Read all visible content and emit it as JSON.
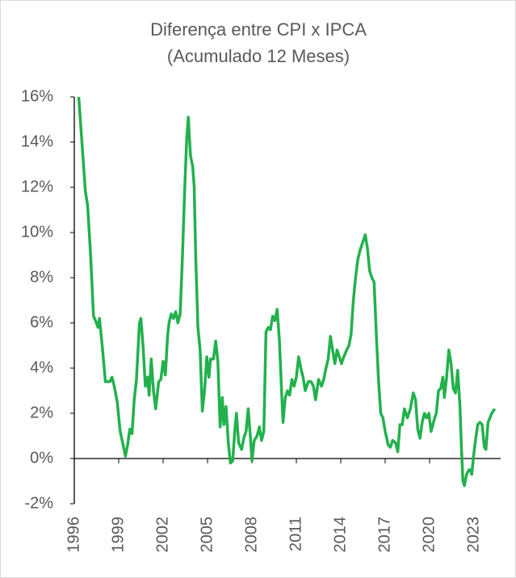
{
  "chart_data": {
    "type": "line",
    "title": "Diferença entre CPI x IPCA",
    "subtitle": "(Acumulado 12 Meses)",
    "color": "#22b14c",
    "x": [
      1996.3,
      1996.6,
      1996.75,
      1996.9,
      1997.1,
      1997.3,
      1997.5,
      1997.6,
      1997.7,
      1997.9,
      1998.1,
      1998.4,
      1998.55,
      1998.7,
      1998.9,
      1999.1,
      1999.3,
      1999.45,
      1999.6,
      1999.75,
      1999.9,
      2000.05,
      2000.2,
      2000.4,
      2000.5,
      2000.65,
      2000.8,
      2000.95,
      2001.05,
      2001.2,
      2001.35,
      2001.5,
      2001.7,
      2001.85,
      2002.0,
      2002.15,
      2002.3,
      2002.4,
      2002.55,
      2002.7,
      2002.85,
      2003.0,
      2003.15,
      2003.3,
      2003.45,
      2003.6,
      2003.7,
      2003.85,
      2004.0,
      2004.1,
      2004.2,
      2004.35,
      2004.5,
      2004.65,
      2004.8,
      2004.95,
      2005.1,
      2005.2,
      2005.4,
      2005.55,
      2005.7,
      2005.85,
      2006.0,
      2006.1,
      2006.25,
      2006.4,
      2006.55,
      2006.7,
      2006.85,
      2006.95,
      2007.1,
      2007.3,
      2007.45,
      2007.6,
      2007.75,
      2007.9,
      2008.0,
      2008.15,
      2008.35,
      2008.5,
      2008.65,
      2008.8,
      2008.95,
      2009.1,
      2009.25,
      2009.4,
      2009.55,
      2009.7,
      2009.85,
      2010.0,
      2010.1,
      2010.25,
      2010.4,
      2010.55,
      2010.7,
      2010.85,
      2011.0,
      2011.15,
      2011.3,
      2011.45,
      2011.6,
      2011.8,
      2012.0,
      2012.15,
      2012.3,
      2012.5,
      2012.7,
      2012.85,
      2013.0,
      2013.15,
      2013.3,
      2013.45,
      2013.6,
      2013.75,
      2013.9,
      2014.05,
      2014.2,
      2014.4,
      2014.55,
      2014.7,
      2014.85,
      2015.0,
      2015.15,
      2015.3,
      2015.5,
      2015.65,
      2015.8,
      2015.95,
      2016.1,
      2016.25,
      2016.4,
      2016.55,
      2016.7,
      2016.85,
      2017.0,
      2017.2,
      2017.35,
      2017.5,
      2017.7,
      2017.85,
      2018.0,
      2018.15,
      2018.3,
      2018.5,
      2018.7,
      2018.9,
      2019.05,
      2019.2,
      2019.35,
      2019.5,
      2019.65,
      2019.8,
      2019.95,
      2020.1,
      2020.3,
      2020.45,
      2020.6,
      2020.75,
      2020.9,
      2021.0,
      2021.15,
      2021.3,
      2021.45,
      2021.6,
      2021.75,
      2021.9,
      2022.05,
      2022.15,
      2022.25,
      2022.35,
      2022.5,
      2022.65,
      2022.75,
      2022.85,
      2022.95,
      2023.1,
      2023.25,
      2023.4,
      2023.55,
      2023.7,
      2023.8,
      2023.95,
      2024.2,
      2024.4
    ],
    "values": [
      16.0,
      13.2,
      11.8,
      11.2,
      9.0,
      6.3,
      6.0,
      5.8,
      6.2,
      4.9,
      3.4,
      3.4,
      3.6,
      3.2,
      2.5,
      1.2,
      0.6,
      0.1,
      0.6,
      1.3,
      1.1,
      2.6,
      3.5,
      6.0,
      6.2,
      4.9,
      3.2,
      3.6,
      2.8,
      4.4,
      3.0,
      2.2,
      3.4,
      3.5,
      4.3,
      3.7,
      5.4,
      6.0,
      6.4,
      6.2,
      6.5,
      6.0,
      6.4,
      8.8,
      11.8,
      14.2,
      15.1,
      13.4,
      12.9,
      12.0,
      9.0,
      5.8,
      4.8,
      2.1,
      3.0,
      4.5,
      3.6,
      4.4,
      4.4,
      5.2,
      4.3,
      1.4,
      2.7,
      1.5,
      2.3,
      0.7,
      -0.2,
      -0.1,
      1.3,
      2.0,
      0.7,
      0.4,
      0.9,
      1.2,
      2.2,
      0.9,
      -0.1,
      0.8,
      1.0,
      1.4,
      0.8,
      1.2,
      5.6,
      5.8,
      5.7,
      6.3,
      6.1,
      6.6,
      5.3,
      3.0,
      1.6,
      2.7,
      3.0,
      2.8,
      3.5,
      3.2,
      3.6,
      4.5,
      4.0,
      3.6,
      3.0,
      3.4,
      3.4,
      3.2,
      2.6,
      3.5,
      3.2,
      3.5,
      4.0,
      4.4,
      5.4,
      4.8,
      4.2,
      4.8,
      4.5,
      4.2,
      4.5,
      4.8,
      5.0,
      5.5,
      7.0,
      8.0,
      8.8,
      9.2,
      9.6,
      9.9,
      9.3,
      8.3,
      8.0,
      7.8,
      5.5,
      3.5,
      2.0,
      1.8,
      1.2,
      0.6,
      0.5,
      0.8,
      0.7,
      0.3,
      1.5,
      1.5,
      2.2,
      1.8,
      2.2,
      2.9,
      2.6,
      1.3,
      0.9,
      1.6,
      2.0,
      1.8,
      2.0,
      1.2,
      1.7,
      2.0,
      3.0,
      3.1,
      3.6,
      2.7,
      3.6,
      4.8,
      4.2,
      3.1,
      2.9,
      3.9,
      2.3,
      0.5,
      -1.0,
      -1.2,
      -0.7,
      -0.5,
      -0.5,
      -0.7,
      0.0,
      0.8,
      1.5,
      1.6,
      1.5,
      0.5,
      0.4,
      1.6,
      2.0,
      2.2
    ],
    "xlim": [
      1996,
      2024.8
    ],
    "xticks": [
      1996,
      1999,
      2002,
      2005,
      2008,
      2011,
      2014,
      2017,
      2020,
      2023
    ],
    "ylim": [
      -2,
      16
    ],
    "yticks": [
      {
        "value": -2,
        "label": "-2%"
      },
      {
        "value": 0,
        "label": "0%"
      },
      {
        "value": 2,
        "label": "2%"
      },
      {
        "value": 4,
        "label": "4%"
      },
      {
        "value": 6,
        "label": "6%"
      },
      {
        "value": 8,
        "label": "8%"
      },
      {
        "value": 10,
        "label": "10%"
      },
      {
        "value": 12,
        "label": "12%"
      },
      {
        "value": 14,
        "label": "14%"
      },
      {
        "value": 16,
        "label": "16%"
      }
    ]
  }
}
